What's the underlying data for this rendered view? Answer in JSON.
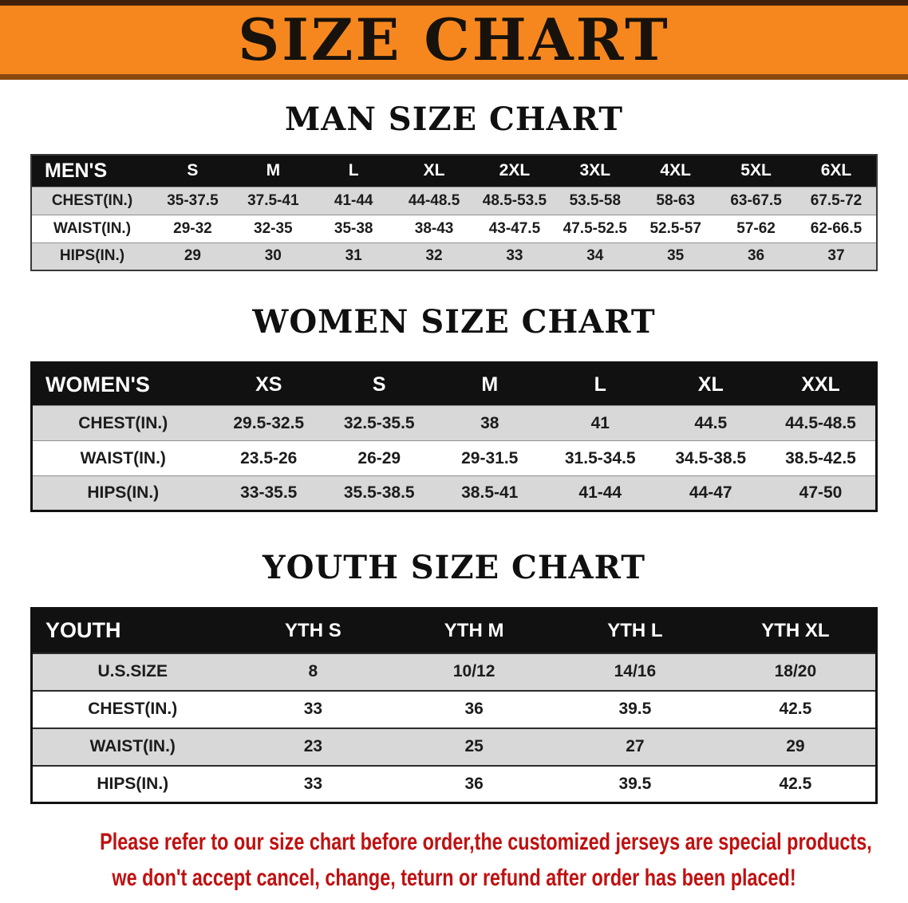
{
  "banner": {
    "title": "SIZE CHART",
    "bg_color": "#f6871f",
    "text_color": "#17120c"
  },
  "chart_data": [
    {
      "type": "table",
      "title": "MAN SIZE CHART",
      "columns": [
        "MEN'S",
        "S",
        "M",
        "L",
        "XL",
        "2XL",
        "3XL",
        "4XL",
        "5XL",
        "6XL"
      ],
      "rows": [
        [
          "CHEST(IN.)",
          "35-37.5",
          "37.5-41",
          "41-44",
          "44-48.5",
          "48.5-53.5",
          "53.5-58",
          "58-63",
          "63-67.5",
          "67.5-72"
        ],
        [
          "WAIST(IN.)",
          "29-32",
          "32-35",
          "35-38",
          "38-43",
          "43-47.5",
          "47.5-52.5",
          "52.5-57",
          "57-62",
          "62-66.5"
        ],
        [
          "HIPS(IN.)",
          "29",
          "30",
          "31",
          "32",
          "33",
          "34",
          "35",
          "36",
          "37"
        ]
      ]
    },
    {
      "type": "table",
      "title": "WOMEN SIZE CHART",
      "columns": [
        "WOMEN'S",
        "XS",
        "S",
        "M",
        "L",
        "XL",
        "XXL"
      ],
      "rows": [
        [
          "CHEST(IN.)",
          "29.5-32.5",
          "32.5-35.5",
          "38",
          "41",
          "44.5",
          "44.5-48.5"
        ],
        [
          "WAIST(IN.)",
          "23.5-26",
          "26-29",
          "29-31.5",
          "31.5-34.5",
          "34.5-38.5",
          "38.5-42.5"
        ],
        [
          "HIPS(IN.)",
          "33-35.5",
          "35.5-38.5",
          "38.5-41",
          "41-44",
          "44-47",
          "47-50"
        ]
      ]
    },
    {
      "type": "table",
      "title": "YOUTH SIZE CHART",
      "columns": [
        "YOUTH",
        "YTH S",
        "YTH M",
        "YTH L",
        "YTH XL"
      ],
      "rows": [
        [
          "U.S.SIZE",
          "8",
          "10/12",
          "14/16",
          "18/20"
        ],
        [
          "CHEST(IN.)",
          "33",
          "36",
          "39.5",
          "42.5"
        ],
        [
          "WAIST(IN.)",
          "23",
          "25",
          "27",
          "29"
        ],
        [
          "HIPS(IN.)",
          "33",
          "36",
          "39.5",
          "42.5"
        ]
      ]
    }
  ],
  "styles": {
    "header_bg": "#111111",
    "header_text": "#ffffff",
    "row_shaded_bg": "#d8d8d8",
    "row_plain_bg": "#ffffff"
  },
  "footer": {
    "line1": "Please refer to our size chart before order,the customized jerseys are special products,",
    "line2": "we don't accept cancel, change, teturn or refund after order has been placed!",
    "text_color": "#c01010"
  }
}
